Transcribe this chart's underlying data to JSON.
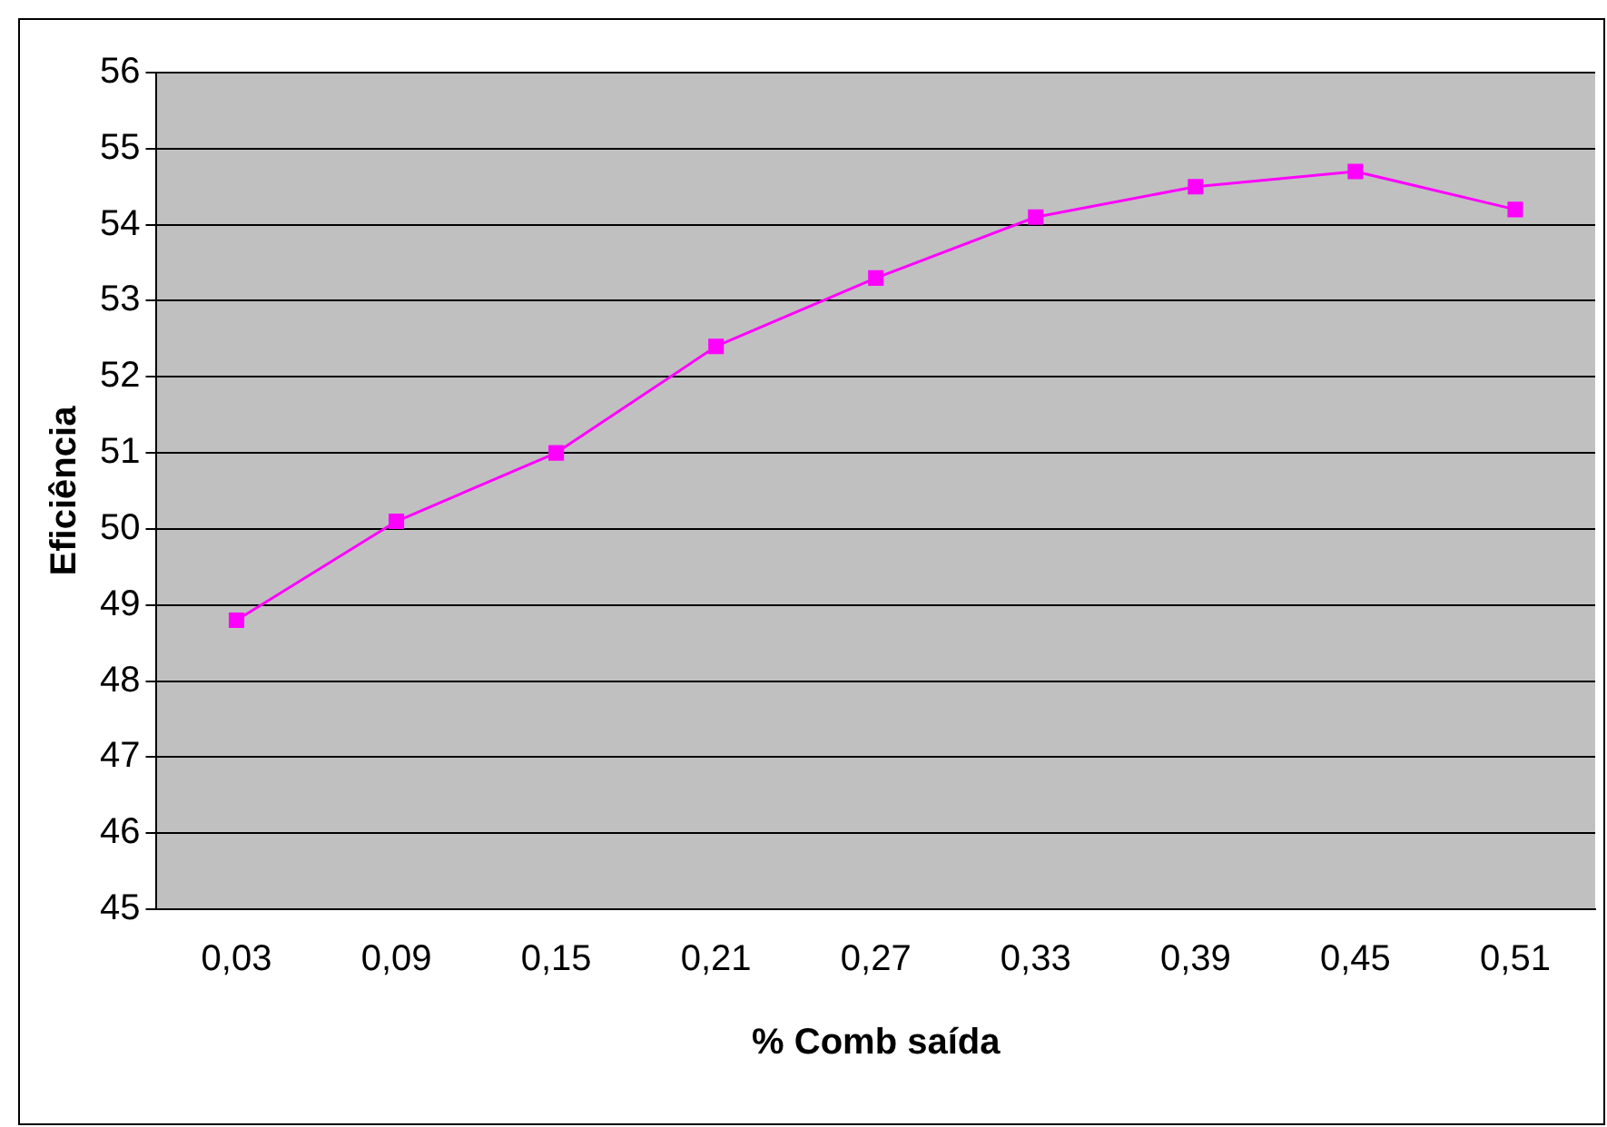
{
  "chart_data": {
    "type": "line",
    "xlabel": "% Comb saída",
    "ylabel": "Eficiência",
    "categories": [
      "0,03",
      "0,09",
      "0,15",
      "0,21",
      "0,27",
      "0,33",
      "0,39",
      "0,45",
      "0,51"
    ],
    "series": [
      {
        "color": "#ff00ff",
        "values": [
          48.8,
          50.1,
          51.0,
          52.4,
          53.3,
          54.1,
          54.5,
          54.7,
          54.2
        ]
      }
    ],
    "ylim": [
      45,
      56
    ],
    "yticks": [
      45,
      46,
      47,
      48,
      49,
      50,
      51,
      52,
      53,
      54,
      55,
      56
    ],
    "grid": "y",
    "legend": false,
    "marker": "square",
    "line_style": "solid"
  }
}
